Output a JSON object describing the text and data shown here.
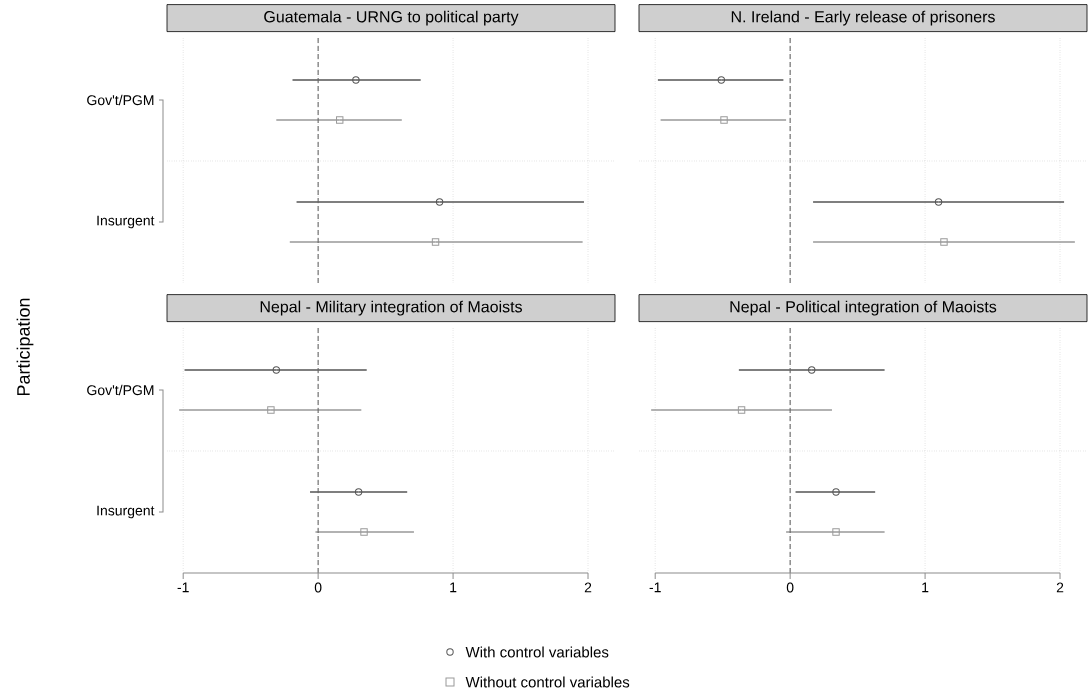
{
  "chart_data": [
    {
      "type": "scatter",
      "title": "Guatemala - URNG to political party",
      "ylabel": "Participation",
      "orientation": "horizontal",
      "categories": [
        "Gov't/PGM",
        "Insurgent"
      ],
      "xlim": [
        -1.12,
        2.2
      ],
      "xticks": [
        -1,
        0,
        1,
        2
      ],
      "tick_labels": "y",
      "grid": true,
      "legend": "bottom",
      "ref_lines": [
        {
          "axis": "x",
          "value": 0,
          "line_style": "dashed",
          "color": "#666666"
        }
      ],
      "series": [
        {
          "name": "With control variables",
          "color": "#555555",
          "marker": "circle",
          "values": [
            0.28,
            0.9
          ],
          "errors": [
            [
              -0.19,
              0.76
            ],
            [
              -0.16,
              1.97
            ]
          ]
        },
        {
          "name": "Without control variables",
          "color": "#999999",
          "marker": "square",
          "values": [
            0.16,
            0.87
          ],
          "errors": [
            [
              -0.31,
              0.62
            ],
            [
              -0.21,
              1.96
            ]
          ]
        }
      ]
    },
    {
      "type": "scatter",
      "title": "N. Ireland - Early release of prisoners",
      "orientation": "horizontal",
      "categories": [
        null,
        null
      ],
      "xlim": [
        -1.12,
        2.2
      ],
      "xticks": [
        -1,
        0,
        1,
        2
      ],
      "tick_labels": false,
      "grid": true,
      "ref_lines": [
        {
          "axis": "x",
          "value": 0,
          "line_style": "dashed",
          "color": "#666666"
        }
      ],
      "series": [
        {
          "color": "#555555",
          "marker": "circle",
          "values": [
            -0.51,
            1.1
          ],
          "errors": [
            [
              -0.98,
              -0.05
            ],
            [
              0.17,
              2.03
            ]
          ]
        },
        {
          "color": "#999999",
          "marker": "square",
          "values": [
            -0.49,
            1.14
          ],
          "errors": [
            [
              -0.96,
              -0.03
            ],
            [
              0.17,
              2.11
            ]
          ]
        }
      ]
    },
    {
      "type": "scatter",
      "title": "Nepal - Military integration of Maoists",
      "orientation": "horizontal",
      "categories": [
        "Gov't/PGM",
        "Insurgent"
      ],
      "xlim": [
        -1.12,
        2.2
      ],
      "xticks": [
        -1,
        0,
        1,
        2
      ],
      "grid": true,
      "ref_lines": [
        {
          "axis": "x",
          "value": 0,
          "line_style": "dashed",
          "color": "#666666"
        }
      ],
      "series": [
        {
          "color": "#555555",
          "marker": "circle",
          "values": [
            -0.31,
            0.3
          ],
          "errors": [
            [
              -0.99,
              0.36
            ],
            [
              -0.06,
              0.66
            ]
          ]
        },
        {
          "color": "#999999",
          "marker": "square",
          "values": [
            -0.35,
            0.34
          ],
          "errors": [
            [
              -1.03,
              0.32
            ],
            [
              -0.02,
              0.71
            ]
          ]
        }
      ]
    },
    {
      "type": "scatter",
      "title": "Nepal - Political integration of Maoists",
      "orientation": "horizontal",
      "categories": [
        null,
        null
      ],
      "xlim": [
        -1.12,
        2.2
      ],
      "xticks": [
        -1,
        0,
        1,
        2
      ],
      "tick_labels": "x",
      "grid": true,
      "ref_lines": [
        {
          "axis": "x",
          "value": 0,
          "line_style": "dashed",
          "color": "#666666"
        }
      ],
      "series": [
        {
          "color": "#555555",
          "marker": "circle",
          "values": [
            0.16,
            0.34
          ],
          "errors": [
            [
              -0.38,
              0.7
            ],
            [
              0.04,
              0.63
            ]
          ]
        },
        {
          "color": "#999999",
          "marker": "square",
          "values": [
            -0.36,
            0.34
          ],
          "errors": [
            [
              -1.03,
              0.31
            ],
            [
              -0.03,
              0.7
            ]
          ]
        }
      ]
    }
  ]
}
